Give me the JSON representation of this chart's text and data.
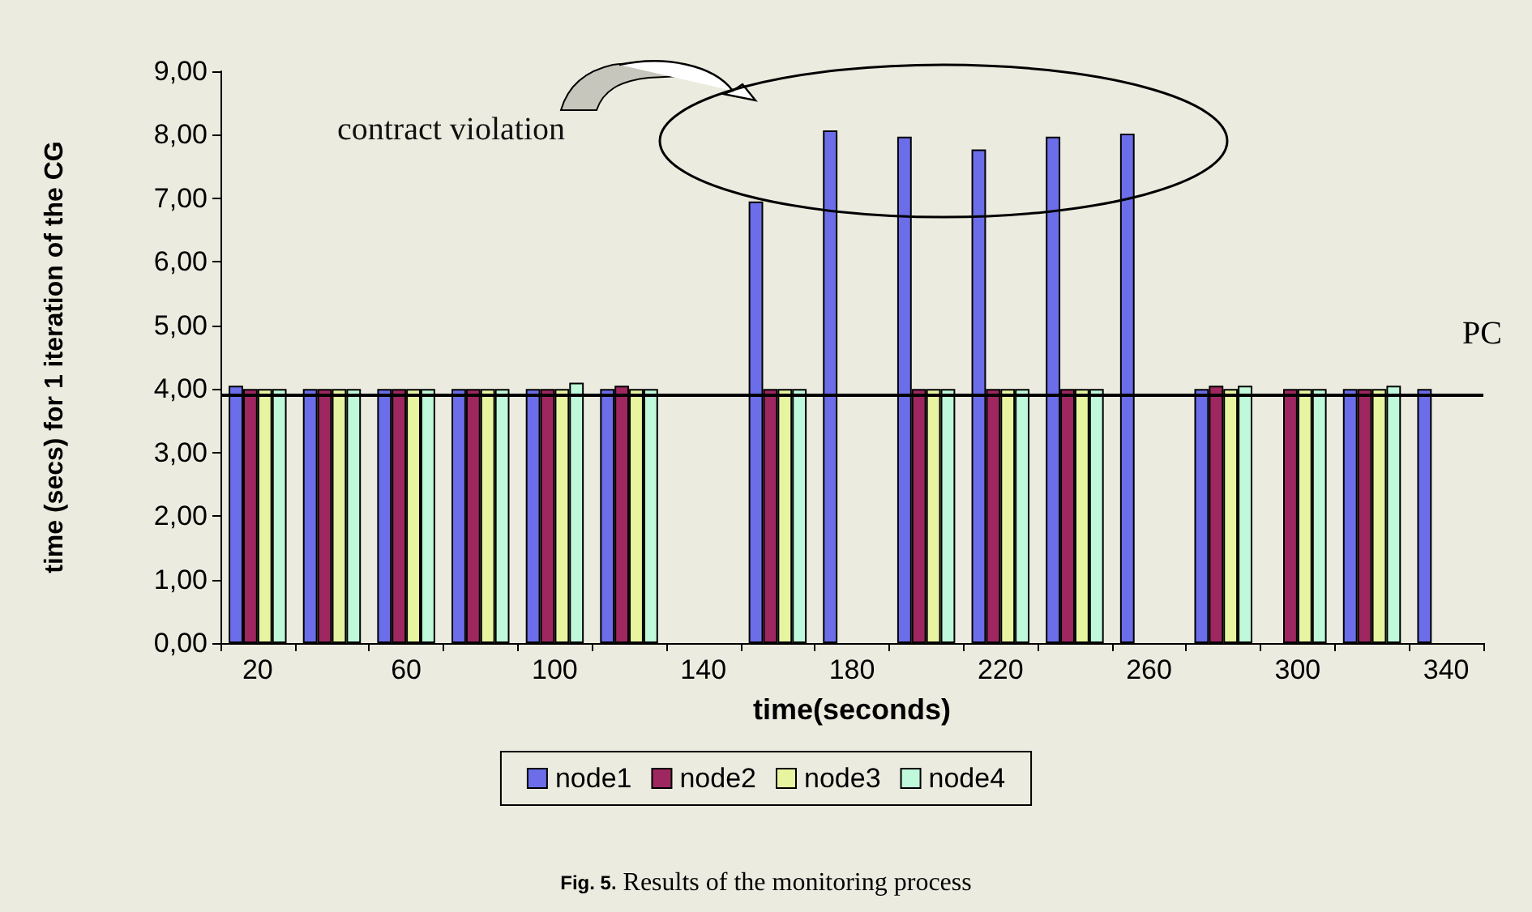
{
  "chart_data": {
    "type": "bar",
    "xlabel": "time(seconds)",
    "ylabel": "time (secs) for 1 iteration of the CG",
    "categories": [
      "20",
      null,
      "60",
      null,
      "100",
      null,
      "140",
      null,
      "180",
      null,
      "220",
      null,
      "260",
      null,
      "300",
      null,
      "340"
    ],
    "series": [
      {
        "name": "node1",
        "color": "#6b6ee8",
        "values": [
          4.05,
          4.0,
          4.0,
          4.0,
          4.0,
          4.0,
          null,
          6.95,
          8.07,
          7.97,
          7.77,
          7.97,
          8.02,
          4.0,
          null,
          4.0,
          4.0
        ]
      },
      {
        "name": "node2",
        "color": "#9e2760",
        "values": [
          4.0,
          4.0,
          4.0,
          4.0,
          4.0,
          4.05,
          null,
          4.0,
          null,
          4.0,
          4.0,
          4.0,
          null,
          4.05,
          4.0,
          4.0,
          null
        ]
      },
      {
        "name": "node3",
        "color": "#e8f5a0",
        "values": [
          4.0,
          4.0,
          4.0,
          4.0,
          4.0,
          4.0,
          null,
          4.0,
          null,
          4.0,
          4.0,
          4.0,
          null,
          4.0,
          4.0,
          4.0,
          null
        ]
      },
      {
        "name": "node4",
        "color": "#bff8da",
        "values": [
          4.0,
          4.0,
          4.0,
          4.0,
          4.1,
          4.0,
          null,
          4.0,
          null,
          4.0,
          4.0,
          4.0,
          null,
          4.05,
          4.0,
          4.05,
          null
        ]
      }
    ],
    "ylim": [
      0,
      9
    ],
    "yticks": [
      {
        "value": 0,
        "label": "0,00"
      },
      {
        "value": 1,
        "label": "1,00"
      },
      {
        "value": 2,
        "label": "2,00"
      },
      {
        "value": 3,
        "label": "3,00"
      },
      {
        "value": 4,
        "label": "4,00"
      },
      {
        "value": 5,
        "label": "5,00"
      },
      {
        "value": 6,
        "label": "6,00"
      },
      {
        "value": 7,
        "label": "7,00"
      },
      {
        "value": 8,
        "label": "8,00"
      },
      {
        "value": 9,
        "label": "9,00"
      }
    ],
    "ref_lines": [
      {
        "axis": "y",
        "value": 3.9,
        "label": "PC",
        "color": "#000000"
      }
    ],
    "annotations": [
      "contract violation",
      "Fig. 5. Results of the monitoring process"
    ],
    "grid": false,
    "legend": "bottom"
  }
}
